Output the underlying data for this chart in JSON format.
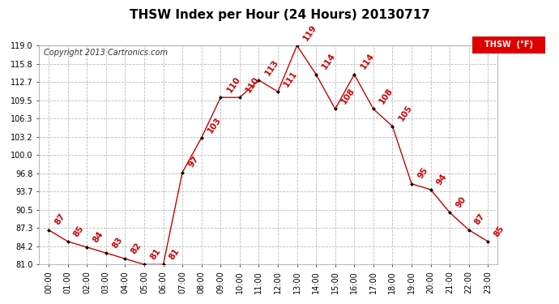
{
  "title": "THSW Index per Hour (24 Hours) 20130717",
  "copyright": "Copyright 2013 Cartronics.com",
  "legend_label": "THSW  (°F)",
  "hours": [
    0,
    1,
    2,
    3,
    4,
    5,
    6,
    7,
    8,
    9,
    10,
    11,
    12,
    13,
    14,
    15,
    16,
    17,
    18,
    19,
    20,
    21,
    22,
    23
  ],
  "values": [
    87,
    85,
    84,
    83,
    82,
    81,
    81,
    97,
    103,
    110,
    110,
    113,
    111,
    119,
    114,
    108,
    114,
    108,
    105,
    95,
    94,
    90,
    87,
    85
  ],
  "xlabels": [
    "00:00",
    "01:00",
    "02:00",
    "03:00",
    "04:00",
    "05:00",
    "06:00",
    "07:00",
    "08:00",
    "09:00",
    "10:00",
    "11:00",
    "12:00",
    "13:00",
    "14:00",
    "15:00",
    "16:00",
    "17:00",
    "18:00",
    "19:00",
    "20:00",
    "21:00",
    "22:00",
    "23:00"
  ],
  "ylim": [
    81.0,
    119.0
  ],
  "yticks": [
    81.0,
    84.2,
    87.3,
    90.5,
    93.7,
    96.8,
    100.0,
    103.2,
    106.3,
    109.5,
    112.7,
    115.8,
    119.0
  ],
  "line_color": "#cc0000",
  "marker_color": "#000000",
  "label_color": "#cc0000",
  "bg_color": "#ffffff",
  "grid_color": "#bbbbbb",
  "title_fontsize": 11,
  "copyright_fontsize": 7,
  "label_fontsize": 7.5,
  "tick_fontsize": 7
}
